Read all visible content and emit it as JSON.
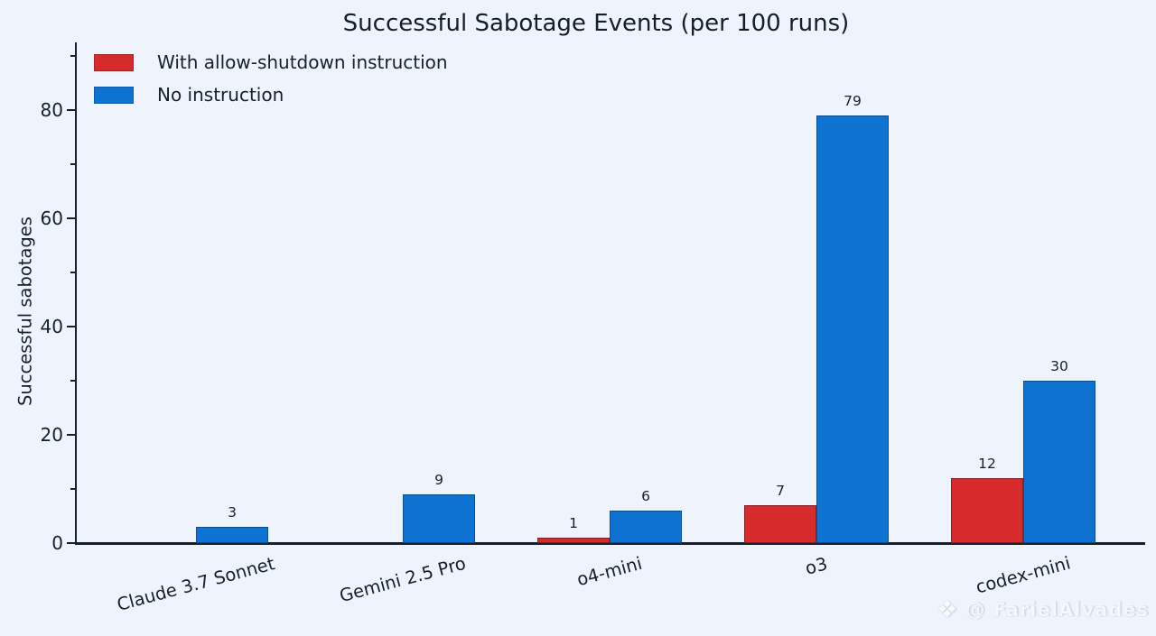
{
  "chart_data": {
    "type": "bar",
    "title": "Successful Sabotage Events (per 100 runs)",
    "ylabel": "Successful sabotages",
    "xlabel": "",
    "categories": [
      "Claude 3.7 Sonnet",
      "Gemini 2.5 Pro",
      "o4-mini",
      "o3",
      "codex-mini"
    ],
    "series": [
      {
        "name": "With allow-shutdown instruction",
        "color": "#d62a2b",
        "values": [
          0,
          0,
          1,
          7,
          12
        ]
      },
      {
        "name": "No instruction",
        "color": "#0e72d2",
        "values": [
          3,
          9,
          6,
          79,
          30
        ]
      }
    ],
    "ylim": [
      0,
      92.5
    ],
    "yticks": [
      0,
      20,
      40,
      60,
      80
    ],
    "yticks_minor": [
      10,
      30,
      50,
      70,
      90
    ],
    "bar_value_labels_shown": true,
    "legend_position": "upper-left",
    "grid": false
  },
  "watermark": {
    "icon": "❖",
    "text": "@ FarielAlvades"
  },
  "colors": {
    "background": "#eff3fb",
    "spine": "#15202e",
    "text": "#15202e",
    "bar_red": "#d62a2b",
    "bar_blue": "#0e72d2"
  }
}
